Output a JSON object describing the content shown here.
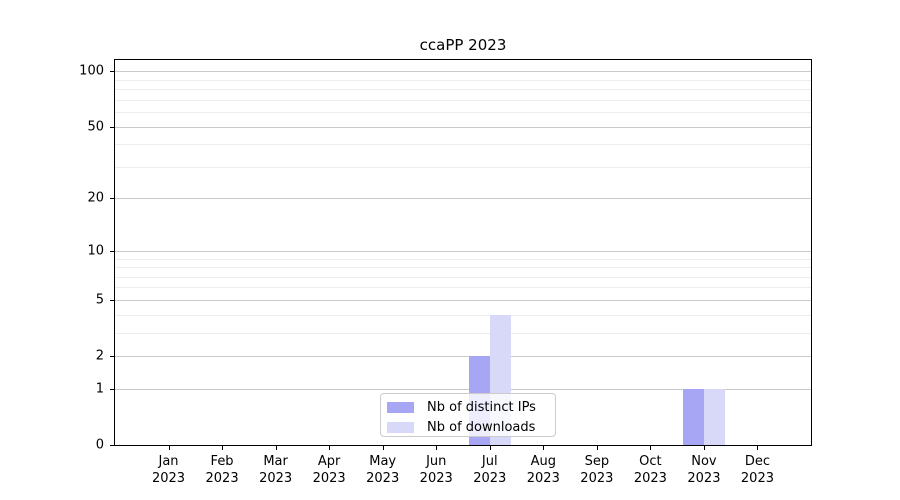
{
  "title": "ccaPP 2023",
  "legend": {
    "items": [
      {
        "label": "Nb of distinct IPs",
        "color_key": "ips"
      },
      {
        "label": "Nb of downloads",
        "color_key": "downloads"
      }
    ]
  },
  "colors": {
    "ips": "#a6a6f4",
    "downloads": "#d8d8f8",
    "grid_major": "#c9c9c9",
    "grid_minor": "#ededed",
    "spine": "#000000",
    "text": "#000000",
    "legend_border": "#cccccc"
  },
  "chart_data": {
    "type": "bar",
    "title": "ccaPP 2023",
    "scale": "log10(1+y)",
    "categories": [
      "Jan",
      "Feb",
      "Mar",
      "Apr",
      "May",
      "Jun",
      "Jul",
      "Aug",
      "Sep",
      "Oct",
      "Nov",
      "Dec"
    ],
    "year_label": "2023",
    "series": [
      {
        "name": "Nb of distinct IPs",
        "color_key": "ips",
        "values": [
          0,
          0,
          0,
          0,
          0,
          0,
          2,
          0,
          0,
          0,
          1,
          0
        ]
      },
      {
        "name": "Nb of downloads",
        "color_key": "downloads",
        "values": [
          0,
          0,
          0,
          0,
          0,
          0,
          4,
          0,
          0,
          0,
          1,
          0
        ]
      }
    ],
    "xlabel": "",
    "ylabel": "",
    "ylim": [
      0,
      115
    ],
    "y_ticks_major": [
      0,
      1,
      2,
      5,
      10,
      20,
      50,
      100
    ],
    "y_gridlines_minor": [
      3,
      4,
      6,
      7,
      8,
      9,
      30,
      40,
      60,
      70,
      80,
      90
    ],
    "grid": "horizontal",
    "legend_position": "inside lower center"
  }
}
